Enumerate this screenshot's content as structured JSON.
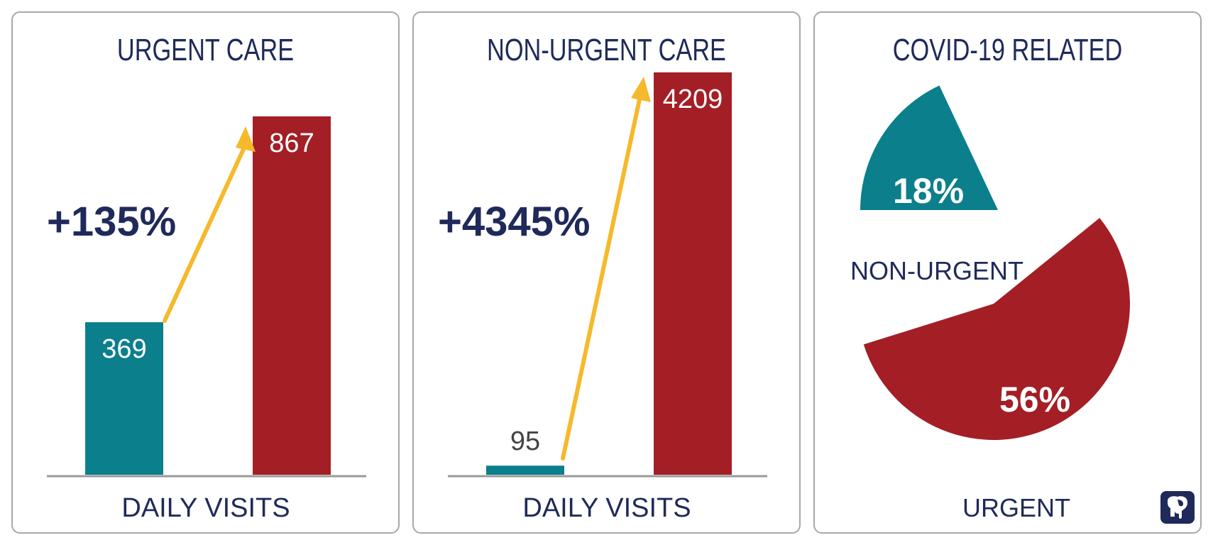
{
  "colors": {
    "navy": "#1f2a5a",
    "teal": "#0b7f8c",
    "red": "#a41e25",
    "arrow": "#f6b92b",
    "axis": "#9a9a9a"
  },
  "panels": {
    "urgent": {
      "title": "URGENT CARE",
      "change": "+135%",
      "xlabel": "DAILY VISITS"
    },
    "nonurgent": {
      "title": "NON-URGENT CARE",
      "change": "+4345%",
      "xlabel": "DAILY VISITS"
    },
    "covid": {
      "title": "COVID-19 RELATED"
    }
  },
  "chart_data": [
    {
      "type": "bar",
      "title": "URGENT CARE",
      "xlabel": "DAILY VISITS",
      "annotation": "+135%",
      "values": [
        369,
        867
      ],
      "value_labels": [
        "369",
        "867"
      ]
    },
    {
      "type": "bar",
      "title": "NON-URGENT CARE",
      "xlabel": "DAILY VISITS",
      "annotation": "+4345%",
      "values": [
        95,
        4209
      ],
      "value_labels": [
        "95",
        "4209"
      ]
    },
    {
      "type": "pie",
      "title": "COVID-19 RELATED",
      "slices": [
        {
          "label": "NON-URGENT",
          "value": 18,
          "text": "18%"
        },
        {
          "label": "URGENT",
          "value": 56,
          "text": "56%"
        }
      ]
    }
  ],
  "logo": {
    "icon": "elephant-icon"
  }
}
